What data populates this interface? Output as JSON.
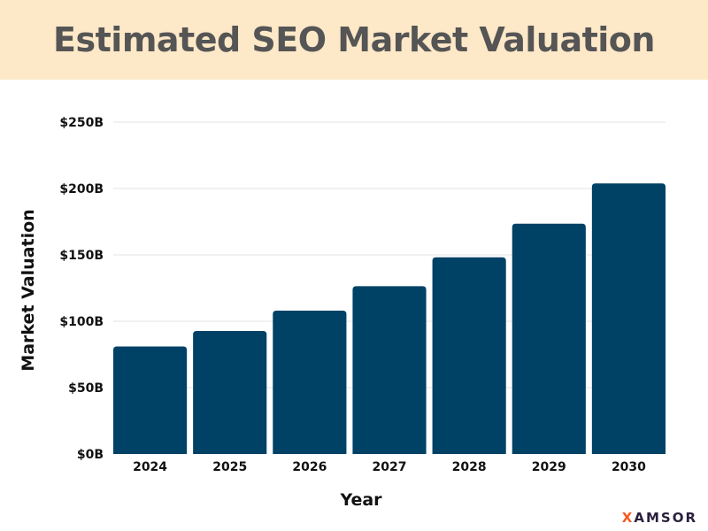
{
  "chart_data": {
    "type": "bar",
    "title": "Estimated SEO Market Valuation",
    "xlabel": "Year",
    "ylabel": "Market Valuation",
    "categories": [
      "2024",
      "2025",
      "2026",
      "2027",
      "2028",
      "2029",
      "2030"
    ],
    "values": [
      81,
      92.7,
      108,
      126.4,
      148.2,
      173.5,
      203.8
    ],
    "unit": "B USD",
    "ylim": [
      0,
      250
    ],
    "yticks": [
      0,
      50,
      100,
      150,
      200,
      250
    ],
    "ytick_labels": [
      "$0B",
      "$50B",
      "$100B",
      "$150B",
      "$200B",
      "$250B"
    ],
    "grid": true,
    "bar_color": "#004166"
  },
  "logo": {
    "first": "X",
    "rest": "AMSOR"
  },
  "colors": {
    "title_band": "#fde8c8",
    "title_text": "#555555",
    "logo_accent": "#f05a22"
  }
}
